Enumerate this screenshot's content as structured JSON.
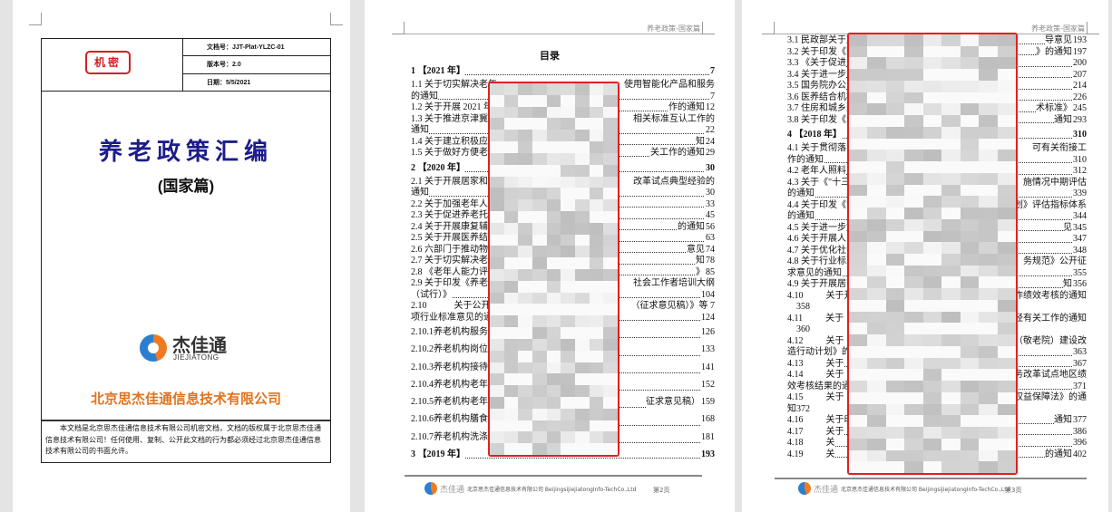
{
  "cover": {
    "seal": "机密",
    "doc_no": "文档号：JJT-Plat-YLZC-01",
    "version": "版本号：2.0",
    "date": "日期：5/5/2021",
    "title": "养老政策汇编",
    "subtitle": "(国家篇)",
    "logo_cn": "杰佳通",
    "logo_en": "JIEJIATONG",
    "company": "北京思杰佳通信息技术有限公司",
    "notice": "本文档是北京思杰佳通信息技术有限公司机密文档，文档的版权属于北京思杰佳通信息技术有限公司！任何使用、复制、公开此文档的行为都必须经过北京思杰佳通信息技术有限公司的书面允许。"
  },
  "running_header": "养老政策-国家篇",
  "footer": {
    "logo": "杰佳通",
    "text": "北京思杰佳通信息技术有限公司 BeijingsijiejiatongInfo-TechCo.,Ltd"
  },
  "colors": {
    "title": "#1c1c8a",
    "company": "#e0731e",
    "redaction_border": "#e02020"
  },
  "page2": {
    "toc_title": "目录",
    "page_label": "第2页",
    "lines": [
      {
        "l": "1 【2021 年】",
        "r": "",
        "p": "7",
        "t": "h"
      },
      {
        "l": "1.1 关于切实解决老年",
        "r": "使用智能化产品和服务",
        "p": ""
      },
      {
        "l": "的通知",
        "r": "",
        "p": "7"
      },
      {
        "l": "1.2 关于开展 2021 年",
        "r": "作的通知",
        "p": "12"
      },
      {
        "l": "1.3 关于推进京津冀",
        "r": "相关标准互认工作的",
        "p": ""
      },
      {
        "l": "通知",
        "r": "",
        "p": "22"
      },
      {
        "l": "1.4 关于建立积极应对",
        "r": "知",
        "p": "24"
      },
      {
        "l": "1.5 关于做好方便老年",
        "r": "关工作的通知",
        "p": "29"
      },
      {
        "l": "2 【2020 年】",
        "r": "",
        "p": "30",
        "t": "h"
      },
      {
        "l": "2.1 关于开展居家和社",
        "r": "改革试点典型经验的",
        "p": ""
      },
      {
        "l": "通知",
        "r": "",
        "p": "30"
      },
      {
        "l": "2.2 关于加强老年人",
        "r": "",
        "p": "33"
      },
      {
        "l": "2.3 关于促进养老托",
        "r": "",
        "p": "45"
      },
      {
        "l": "2.4 关于开展康复辅",
        "r": "的通知",
        "p": "56"
      },
      {
        "l": "2.5 关于开展医养结",
        "r": "",
        "p": "63"
      },
      {
        "l": "2.6 六部门于推动物",
        "r": "意见",
        "p": "74"
      },
      {
        "l": "2.7 关于切实解决老年",
        "r": "知",
        "p": "78"
      },
      {
        "l": "2.8 《老年人能力评估",
        "r": "》",
        "p": "85"
      },
      {
        "l": "2.9 关于印发《养老院",
        "r": "社会工作者培训大纲",
        "p": ""
      },
      {
        "l": "（试行）》",
        "r": "",
        "p": "104"
      },
      {
        "l": "2.10            关于公开",
        "r": "（征求意见稿）》等 7",
        "p": ""
      },
      {
        "l": "项行业标准意见的通",
        "r": "",
        "p": "124"
      },
      {
        "l": "2.10.1养老机构服务",
        "r": "",
        "p": "126",
        "t": "s"
      },
      {
        "l": "2.10.2养老机构岗位",
        "r": "",
        "p": "133",
        "t": "s"
      },
      {
        "l": "2.10.3养老机构接待",
        "r": "",
        "p": "141",
        "t": "s"
      },
      {
        "l": "2.10.4养老机构老年",
        "r": "",
        "p": "152",
        "t": "s"
      },
      {
        "l": "2.10.5养老机构老年",
        "r": "征求意见稿）",
        "p": "159",
        "t": "s"
      },
      {
        "l": "2.10.6养老机构膳食",
        "r": "",
        "p": "168",
        "t": "s"
      },
      {
        "l": "2.10.7养老机构洗涤服",
        "r": "",
        "p": "181",
        "t": "s"
      },
      {
        "l": "3 【2019 年】",
        "r": "",
        "p": "193",
        "t": "h"
      }
    ]
  },
  "page3": {
    "page_label": "第3页",
    "lines": [
      {
        "l": "3.1 民政部关于加",
        "r": "导意见",
        "p": "193"
      },
      {
        "l": "3.2 关于印发《国",
        "r": "》的通知",
        "p": "197"
      },
      {
        "l": "3.3 《关于促进",
        "r": "",
        "p": "200"
      },
      {
        "l": "3.4 关于进一步",
        "r": "",
        "p": "207"
      },
      {
        "l": "3.5 国务院办公",
        "r": "",
        "p": "214"
      },
      {
        "l": "3.6 医养结合机构",
        "r": "",
        "p": "226"
      },
      {
        "l": "3.7 住房和城乡建",
        "r": "术标准》",
        "p": "245"
      },
      {
        "l": "3.8 关于印发《城",
        "r": "通知",
        "p": "293"
      },
      {
        "l": "4 【2018 年】",
        "r": "",
        "p": "310",
        "t": "h"
      },
      {
        "l": "4.1 关于贯彻落实",
        "r": "可有关衔接工",
        "p": ""
      },
      {
        "l": "作的通知",
        "r": "",
        "p": "310"
      },
      {
        "l": "4.2 老年人照料",
        "r": "",
        "p": "312"
      },
      {
        "l": "4.3 关于《\"十三",
        "r": "施情况中期评估",
        "p": ""
      },
      {
        "l": "的通知",
        "r": "",
        "p": "339"
      },
      {
        "l": "4.4 关于印发《\"",
        "r": "规划》评估指标体系",
        "p": ""
      },
      {
        "l": "的通知",
        "r": "",
        "p": "344"
      },
      {
        "l": "4.5 关于进一步加",
        "r": "见",
        "p": "345"
      },
      {
        "l": "4.6 关于开展人口",
        "r": "",
        "p": "347"
      },
      {
        "l": "4.7 关于优化社会",
        "r": "",
        "p": "348"
      },
      {
        "l": "4.8 关于行业标准",
        "r": "务规范》公开征",
        "p": ""
      },
      {
        "l": "求意见的通知",
        "r": "",
        "p": "355"
      },
      {
        "l": "4.9 关于开展居家",
        "r": "知",
        "p": "356"
      },
      {
        "l": "4.10          关于开",
        "r": "作绩效考核的通知",
        "p": ""
      },
      {
        "l": "    358",
        "r": "",
        "p": ""
      },
      {
        "l": "4.11          关于",
        "r": "经有关工作的通知",
        "p": ""
      },
      {
        "l": "    360",
        "r": "",
        "p": ""
      },
      {
        "l": "4.12          关于",
        "r": "（敬老院）建设改",
        "p": ""
      },
      {
        "l": "造行动计划》的",
        "r": "",
        "p": "363"
      },
      {
        "l": "4.13          关于",
        "r": "",
        "p": "367"
      },
      {
        "l": "4.14          关于",
        "r": "务改革试点地区绩",
        "p": ""
      },
      {
        "l": "效考核结果的通知",
        "r": "",
        "p": "371"
      },
      {
        "l": "4.15          关于",
        "r": "权益保障法》的通",
        "p": ""
      },
      {
        "l": "知372",
        "r": "",
        "p": ""
      },
      {
        "l": "4.16          关于印",
        "r": "通知",
        "p": "377"
      },
      {
        "l": "4.17          关于",
        "r": "",
        "p": "386"
      },
      {
        "l": "4.18          关",
        "r": "",
        "p": "396"
      },
      {
        "l": "4.19          关",
        "r": "的通知",
        "p": "402"
      }
    ]
  }
}
